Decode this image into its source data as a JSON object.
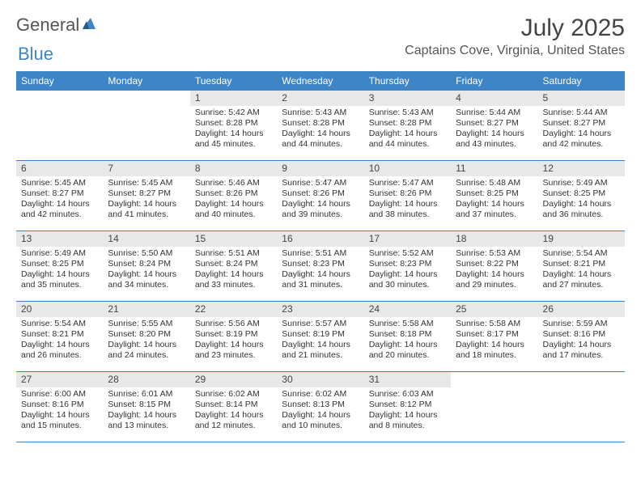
{
  "brand": {
    "part1": "General",
    "part2": "Blue"
  },
  "title": "July 2025",
  "location": "Captains Cove, Virginia, United States",
  "colors": {
    "accent": "#3d85c6",
    "numbg": "#e8e8e8"
  },
  "dayNames": [
    "Sunday",
    "Monday",
    "Tuesday",
    "Wednesday",
    "Thursday",
    "Friday",
    "Saturday"
  ],
  "weeks": [
    [
      {
        "n": "",
        "sr": "",
        "ss": "",
        "dl": ""
      },
      {
        "n": "",
        "sr": "",
        "ss": "",
        "dl": ""
      },
      {
        "n": "1",
        "sr": "Sunrise: 5:42 AM",
        "ss": "Sunset: 8:28 PM",
        "dl": "Daylight: 14 hours and 45 minutes."
      },
      {
        "n": "2",
        "sr": "Sunrise: 5:43 AM",
        "ss": "Sunset: 8:28 PM",
        "dl": "Daylight: 14 hours and 44 minutes."
      },
      {
        "n": "3",
        "sr": "Sunrise: 5:43 AM",
        "ss": "Sunset: 8:28 PM",
        "dl": "Daylight: 14 hours and 44 minutes."
      },
      {
        "n": "4",
        "sr": "Sunrise: 5:44 AM",
        "ss": "Sunset: 8:27 PM",
        "dl": "Daylight: 14 hours and 43 minutes."
      },
      {
        "n": "5",
        "sr": "Sunrise: 5:44 AM",
        "ss": "Sunset: 8:27 PM",
        "dl": "Daylight: 14 hours and 42 minutes."
      }
    ],
    [
      {
        "n": "6",
        "sr": "Sunrise: 5:45 AM",
        "ss": "Sunset: 8:27 PM",
        "dl": "Daylight: 14 hours and 42 minutes."
      },
      {
        "n": "7",
        "sr": "Sunrise: 5:45 AM",
        "ss": "Sunset: 8:27 PM",
        "dl": "Daylight: 14 hours and 41 minutes."
      },
      {
        "n": "8",
        "sr": "Sunrise: 5:46 AM",
        "ss": "Sunset: 8:26 PM",
        "dl": "Daylight: 14 hours and 40 minutes."
      },
      {
        "n": "9",
        "sr": "Sunrise: 5:47 AM",
        "ss": "Sunset: 8:26 PM",
        "dl": "Daylight: 14 hours and 39 minutes."
      },
      {
        "n": "10",
        "sr": "Sunrise: 5:47 AM",
        "ss": "Sunset: 8:26 PM",
        "dl": "Daylight: 14 hours and 38 minutes."
      },
      {
        "n": "11",
        "sr": "Sunrise: 5:48 AM",
        "ss": "Sunset: 8:25 PM",
        "dl": "Daylight: 14 hours and 37 minutes."
      },
      {
        "n": "12",
        "sr": "Sunrise: 5:49 AM",
        "ss": "Sunset: 8:25 PM",
        "dl": "Daylight: 14 hours and 36 minutes."
      }
    ],
    [
      {
        "n": "13",
        "sr": "Sunrise: 5:49 AM",
        "ss": "Sunset: 8:25 PM",
        "dl": "Daylight: 14 hours and 35 minutes."
      },
      {
        "n": "14",
        "sr": "Sunrise: 5:50 AM",
        "ss": "Sunset: 8:24 PM",
        "dl": "Daylight: 14 hours and 34 minutes."
      },
      {
        "n": "15",
        "sr": "Sunrise: 5:51 AM",
        "ss": "Sunset: 8:24 PM",
        "dl": "Daylight: 14 hours and 33 minutes."
      },
      {
        "n": "16",
        "sr": "Sunrise: 5:51 AM",
        "ss": "Sunset: 8:23 PM",
        "dl": "Daylight: 14 hours and 31 minutes."
      },
      {
        "n": "17",
        "sr": "Sunrise: 5:52 AM",
        "ss": "Sunset: 8:23 PM",
        "dl": "Daylight: 14 hours and 30 minutes."
      },
      {
        "n": "18",
        "sr": "Sunrise: 5:53 AM",
        "ss": "Sunset: 8:22 PM",
        "dl": "Daylight: 14 hours and 29 minutes."
      },
      {
        "n": "19",
        "sr": "Sunrise: 5:54 AM",
        "ss": "Sunset: 8:21 PM",
        "dl": "Daylight: 14 hours and 27 minutes."
      }
    ],
    [
      {
        "n": "20",
        "sr": "Sunrise: 5:54 AM",
        "ss": "Sunset: 8:21 PM",
        "dl": "Daylight: 14 hours and 26 minutes."
      },
      {
        "n": "21",
        "sr": "Sunrise: 5:55 AM",
        "ss": "Sunset: 8:20 PM",
        "dl": "Daylight: 14 hours and 24 minutes."
      },
      {
        "n": "22",
        "sr": "Sunrise: 5:56 AM",
        "ss": "Sunset: 8:19 PM",
        "dl": "Daylight: 14 hours and 23 minutes."
      },
      {
        "n": "23",
        "sr": "Sunrise: 5:57 AM",
        "ss": "Sunset: 8:19 PM",
        "dl": "Daylight: 14 hours and 21 minutes."
      },
      {
        "n": "24",
        "sr": "Sunrise: 5:58 AM",
        "ss": "Sunset: 8:18 PM",
        "dl": "Daylight: 14 hours and 20 minutes."
      },
      {
        "n": "25",
        "sr": "Sunrise: 5:58 AM",
        "ss": "Sunset: 8:17 PM",
        "dl": "Daylight: 14 hours and 18 minutes."
      },
      {
        "n": "26",
        "sr": "Sunrise: 5:59 AM",
        "ss": "Sunset: 8:16 PM",
        "dl": "Daylight: 14 hours and 17 minutes."
      }
    ],
    [
      {
        "n": "27",
        "sr": "Sunrise: 6:00 AM",
        "ss": "Sunset: 8:16 PM",
        "dl": "Daylight: 14 hours and 15 minutes."
      },
      {
        "n": "28",
        "sr": "Sunrise: 6:01 AM",
        "ss": "Sunset: 8:15 PM",
        "dl": "Daylight: 14 hours and 13 minutes."
      },
      {
        "n": "29",
        "sr": "Sunrise: 6:02 AM",
        "ss": "Sunset: 8:14 PM",
        "dl": "Daylight: 14 hours and 12 minutes."
      },
      {
        "n": "30",
        "sr": "Sunrise: 6:02 AM",
        "ss": "Sunset: 8:13 PM",
        "dl": "Daylight: 14 hours and 10 minutes."
      },
      {
        "n": "31",
        "sr": "Sunrise: 6:03 AM",
        "ss": "Sunset: 8:12 PM",
        "dl": "Daylight: 14 hours and 8 minutes."
      },
      {
        "n": "",
        "sr": "",
        "ss": "",
        "dl": ""
      },
      {
        "n": "",
        "sr": "",
        "ss": "",
        "dl": ""
      }
    ]
  ]
}
